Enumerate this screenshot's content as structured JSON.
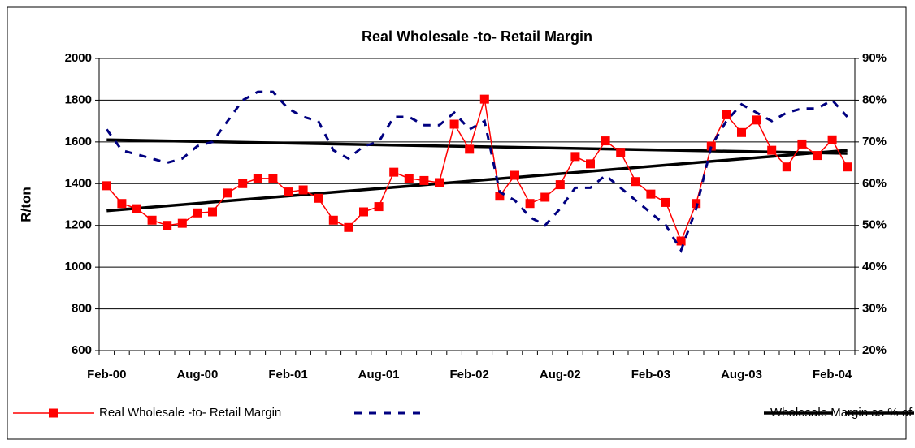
{
  "chart_data": {
    "type": "line",
    "title": "Real Wholesale -to- Retail Margin",
    "ylabel": "R/ton",
    "categories": [
      "Feb-00",
      null,
      null,
      null,
      null,
      null,
      "Aug-00",
      null,
      null,
      null,
      null,
      null,
      "Feb-01",
      null,
      null,
      null,
      null,
      null,
      "Aug-01",
      null,
      null,
      null,
      null,
      null,
      "Feb-02",
      null,
      null,
      null,
      null,
      null,
      "Aug-02",
      null,
      null,
      null,
      null,
      null,
      "Feb-03",
      null,
      null,
      null,
      null,
      null,
      "Aug-03",
      null,
      null,
      null,
      null,
      null,
      "Feb-04",
      null
    ],
    "ylim": [
      600,
      2000
    ],
    "yticks": [
      600,
      800,
      1000,
      1200,
      1400,
      1600,
      1800,
      2000
    ],
    "y2lim": [
      20,
      90
    ],
    "y2ticks": [
      {
        "value": 20,
        "label": "20%"
      },
      {
        "value": 30,
        "label": "30%"
      },
      {
        "value": 40,
        "label": "40%"
      },
      {
        "value": 50,
        "label": "50%"
      },
      {
        "value": 60,
        "label": "60%"
      },
      {
        "value": 70,
        "label": "70%"
      },
      {
        "value": 80,
        "label": "80%"
      },
      {
        "value": 90,
        "label": "90%"
      }
    ],
    "grid": true,
    "legend": "bottom",
    "series": [
      {
        "name": "Real Wholesale -to- Retail Margin",
        "color": "#ff0000",
        "marker": "square",
        "values": [
          1390,
          1305,
          1280,
          1225,
          1200,
          1210,
          1260,
          1265,
          1355,
          1400,
          1425,
          1425,
          1360,
          1370,
          1330,
          1225,
          1190,
          1265,
          1290,
          1455,
          1425,
          1415,
          1405,
          1685,
          1565,
          1805,
          1340,
          1440,
          1305,
          1335,
          1395,
          1530,
          1495,
          1605,
          1550,
          1410,
          1350,
          1310,
          1125,
          1305,
          1580,
          1730,
          1645,
          1705,
          1560,
          1480,
          1590,
          1535,
          1610,
          1480
        ]
      },
      {
        "name": "Wholesale Margin as % of Retail price -Real",
        "color": "#000080",
        "dash": true,
        "axis": "y2",
        "values": [
          73,
          68,
          67,
          66,
          65,
          66,
          69,
          70,
          75,
          80,
          82,
          82,
          78,
          76,
          75,
          68,
          66,
          69,
          70,
          76,
          76,
          74,
          74,
          77,
          73,
          75,
          58,
          56,
          52,
          50,
          54,
          59,
          59,
          62,
          59,
          56,
          53,
          50,
          44,
          54,
          69,
          75,
          79,
          77,
          75,
          77,
          78,
          78,
          80,
          76
        ]
      }
    ],
    "trends": [
      {
        "color": "#000000",
        "values": [
          1270,
          1560
        ]
      },
      {
        "color": "#000000",
        "values": [
          1610,
          1545
        ]
      }
    ]
  }
}
